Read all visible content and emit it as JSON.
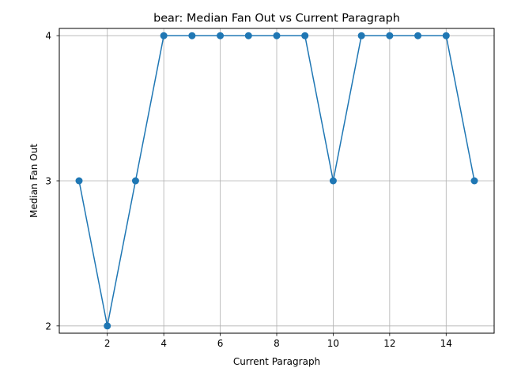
{
  "chart_data": {
    "type": "line",
    "title": "bear: Median Fan Out vs Current Paragraph",
    "xlabel": "Current Paragraph",
    "ylabel": "Median Fan Out",
    "x": [
      1,
      2,
      3,
      4,
      5,
      6,
      7,
      8,
      9,
      10,
      11,
      12,
      13,
      14,
      15
    ],
    "y": [
      3,
      2,
      3,
      4,
      4,
      4,
      4,
      4,
      4,
      3,
      4,
      4,
      4,
      4,
      3
    ],
    "xlim": [
      0.3,
      15.7
    ],
    "ylim": [
      1.95,
      4.05
    ],
    "xticks": [
      2,
      4,
      6,
      8,
      10,
      12,
      14
    ],
    "yticks": [
      2,
      3,
      4
    ],
    "grid": true,
    "color": "#1f77b4",
    "marker": "circle"
  }
}
